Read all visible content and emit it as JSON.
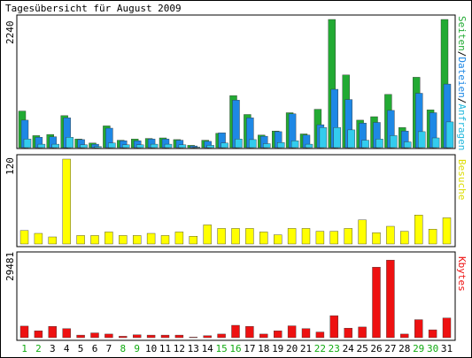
{
  "title": "Tagesübersicht für August 2009",
  "colors": {
    "seiten": "#22aa33",
    "dateien": "#1e88e5",
    "anfragen": "#33ccee",
    "besuche": "#ffff00",
    "kbytes": "#ee1111",
    "weekend_label": "#11aa11",
    "weekday_label": "#000000"
  },
  "panels": {
    "top": {
      "ylabel": "2240",
      "legend": {
        "seiten": "Seiten",
        "slash1": "/",
        "dateien": "Dateien",
        "slash2": "/",
        "anfragen": "Anfragen"
      }
    },
    "middle": {
      "ylabel": "120",
      "legend": "Besuche"
    },
    "bottom": {
      "ylabel": "29481",
      "legend": "Kbytes"
    }
  },
  "chart_data": [
    {
      "type": "bar",
      "panel": "top",
      "x": [
        "1",
        "2",
        "3",
        "4",
        "5",
        "6",
        "7",
        "8",
        "9",
        "10",
        "11",
        "12",
        "13",
        "14",
        "15",
        "16",
        "17",
        "18",
        "19",
        "20",
        "21",
        "22",
        "23",
        "24",
        "25",
        "26",
        "27",
        "28",
        "29",
        "30",
        "31"
      ],
      "ylim": [
        0,
        2240
      ],
      "series": [
        {
          "name": "Seiten",
          "values": [
            640,
            210,
            230,
            560,
            150,
            80,
            380,
            130,
            150,
            160,
            170,
            140,
            40,
            130,
            250,
            910,
            580,
            220,
            290,
            610,
            240,
            670,
            2240,
            1270,
            480,
            540,
            930,
            350,
            1230,
            660,
            2240
          ]
        },
        {
          "name": "Dateien",
          "values": [
            480,
            180,
            190,
            520,
            140,
            60,
            340,
            120,
            120,
            150,
            150,
            130,
            30,
            110,
            260,
            830,
            520,
            200,
            280,
            590,
            220,
            400,
            1020,
            840,
            430,
            440,
            650,
            290,
            950,
            610,
            1110
          ]
        },
        {
          "name": "Anfragen",
          "values": [
            150,
            60,
            60,
            180,
            50,
            20,
            80,
            50,
            50,
            60,
            60,
            50,
            10,
            40,
            80,
            150,
            140,
            70,
            90,
            120,
            60,
            350,
            350,
            310,
            130,
            150,
            210,
            100,
            280,
            170,
            450
          ]
        }
      ]
    },
    {
      "type": "bar",
      "panel": "middle",
      "x": [
        "1",
        "2",
        "3",
        "4",
        "5",
        "6",
        "7",
        "8",
        "9",
        "10",
        "11",
        "12",
        "13",
        "14",
        "15",
        "16",
        "17",
        "18",
        "19",
        "20",
        "21",
        "22",
        "23",
        "24",
        "25",
        "26",
        "27",
        "28",
        "29",
        "30",
        "31"
      ],
      "ylim": [
        0,
        120
      ],
      "series": [
        {
          "name": "Besuche",
          "values": [
            19,
            15,
            10,
            120,
            12,
            12,
            17,
            12,
            12,
            15,
            12,
            17,
            11,
            27,
            22,
            22,
            22,
            17,
            13,
            22,
            22,
            18,
            18,
            22,
            34,
            16,
            25,
            18,
            41,
            21,
            37
          ]
        }
      ]
    },
    {
      "type": "bar",
      "panel": "bottom",
      "x": [
        "1",
        "2",
        "3",
        "4",
        "5",
        "6",
        "7",
        "8",
        "9",
        "10",
        "11",
        "12",
        "13",
        "14",
        "15",
        "16",
        "17",
        "18",
        "19",
        "20",
        "21",
        "22",
        "23",
        "24",
        "25",
        "26",
        "27",
        "28",
        "29",
        "30",
        "31"
      ],
      "ylim": [
        0,
        29481
      ],
      "series": [
        {
          "name": "Kbytes",
          "values": [
            4100,
            2400,
            4000,
            3200,
            900,
            1700,
            1300,
            500,
            1000,
            900,
            900,
            900,
            200,
            700,
            1300,
            4400,
            4000,
            1300,
            2400,
            4200,
            3200,
            2000,
            7800,
            3400,
            3800,
            25000,
            27500,
            1300,
            6400,
            2800,
            7000
          ]
        }
      ]
    }
  ],
  "day_labels": [
    {
      "text": "1",
      "weekend": true
    },
    {
      "text": "2",
      "weekend": true
    },
    {
      "text": "3",
      "weekend": false
    },
    {
      "text": "4",
      "weekend": false
    },
    {
      "text": "5",
      "weekend": false
    },
    {
      "text": "6",
      "weekend": false
    },
    {
      "text": "7",
      "weekend": false
    },
    {
      "text": "8",
      "weekend": true
    },
    {
      "text": "9",
      "weekend": true
    },
    {
      "text": "10",
      "weekend": false
    },
    {
      "text": "11",
      "weekend": false
    },
    {
      "text": "12",
      "weekend": false
    },
    {
      "text": "13",
      "weekend": false
    },
    {
      "text": "14",
      "weekend": false
    },
    {
      "text": "15",
      "weekend": true
    },
    {
      "text": "16",
      "weekend": true
    },
    {
      "text": "17",
      "weekend": false
    },
    {
      "text": "18",
      "weekend": false
    },
    {
      "text": "19",
      "weekend": false
    },
    {
      "text": "20",
      "weekend": false
    },
    {
      "text": "21",
      "weekend": false
    },
    {
      "text": "22",
      "weekend": true
    },
    {
      "text": "23",
      "weekend": true
    },
    {
      "text": "24",
      "weekend": false
    },
    {
      "text": "25",
      "weekend": false
    },
    {
      "text": "26",
      "weekend": false
    },
    {
      "text": "27",
      "weekend": false
    },
    {
      "text": "28",
      "weekend": false
    },
    {
      "text": "29",
      "weekend": true
    },
    {
      "text": "30",
      "weekend": true
    },
    {
      "text": "31",
      "weekend": false
    }
  ]
}
